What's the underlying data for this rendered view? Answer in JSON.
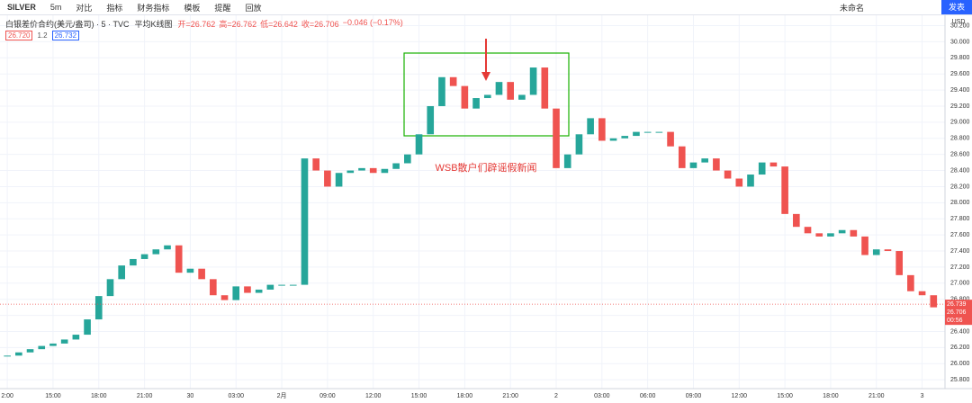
{
  "toolbar": {
    "symbol": "SILVER",
    "interval": "5m",
    "items": [
      "对比",
      "指标",
      "财务指标",
      "模板",
      "提醒",
      "回放"
    ],
    "layout_name": "未命名",
    "publish": "发表"
  },
  "legend": {
    "instrument": "白银差价合约(美元/盎司) · 5 · TVC",
    "chart_style": "平均K线图",
    "ohlc": [
      "开=26.762",
      "高=26.762",
      "低=26.642",
      "收=26.706",
      "−0.046 (−0.17%)"
    ],
    "bid": "26.720",
    "spread": "1.2",
    "ask": "26.732"
  },
  "chart_data": {
    "type": "candlestick",
    "currency": "USD",
    "annotation": "WSB散户们辟谣假新闻",
    "up_color": "#26a69a",
    "down_color": "#ef5350",
    "grid": true,
    "last_price": 26.739,
    "close_label": "26.706",
    "countdown": "00:56",
    "xlim": [
      -0.16,
      20.5
    ],
    "ylim": [
      25.69,
      30.34
    ],
    "xticks": [
      {
        "value": 0,
        "label": "2:00"
      },
      {
        "value": 1,
        "label": "15:00"
      },
      {
        "value": 2,
        "label": "18:00"
      },
      {
        "value": 3,
        "label": "21:00"
      },
      {
        "value": 4,
        "label": "30"
      },
      {
        "value": 5,
        "label": "03:00"
      },
      {
        "value": 6,
        "label": "2月"
      },
      {
        "value": 7,
        "label": "09:00"
      },
      {
        "value": 8,
        "label": "12:00"
      },
      {
        "value": 9,
        "label": "15:00"
      },
      {
        "value": 10,
        "label": "18:00"
      },
      {
        "value": 11,
        "label": "21:00"
      },
      {
        "value": 12,
        "label": "2"
      },
      {
        "value": 13,
        "label": "03:00"
      },
      {
        "value": 14,
        "label": "06:00"
      },
      {
        "value": 15,
        "label": "09:00"
      },
      {
        "value": 16,
        "label": "12:00"
      },
      {
        "value": 17,
        "label": "15:00"
      },
      {
        "value": 18,
        "label": "18:00"
      },
      {
        "value": 19,
        "label": "21:00"
      },
      {
        "value": 20,
        "label": "3"
      }
    ],
    "yticks": [
      {
        "value": 25.8,
        "label": "25.800"
      },
      {
        "value": 26.0,
        "label": "26.000"
      },
      {
        "value": 26.2,
        "label": "26.200"
      },
      {
        "value": 26.4,
        "label": "26.400"
      },
      {
        "value": 26.6,
        "label": "26.600"
      },
      {
        "value": 26.8,
        "label": "26.800"
      },
      {
        "value": 27.0,
        "label": "27.000"
      },
      {
        "value": 27.2,
        "label": "27.200"
      },
      {
        "value": 27.4,
        "label": "27.400"
      },
      {
        "value": 27.6,
        "label": "27.600"
      },
      {
        "value": 27.8,
        "label": "27.800"
      },
      {
        "value": 28.0,
        "label": "28.000"
      },
      {
        "value": 28.2,
        "label": "28.200"
      },
      {
        "value": 28.4,
        "label": "28.400"
      },
      {
        "value": 28.6,
        "label": "28.600"
      },
      {
        "value": 28.8,
        "label": "28.800"
      },
      {
        "value": 29.0,
        "label": "29.000"
      },
      {
        "value": 29.2,
        "label": "29.200"
      },
      {
        "value": 29.4,
        "label": "29.400"
      },
      {
        "value": 29.6,
        "label": "29.600"
      },
      {
        "value": 29.8,
        "label": "29.800"
      },
      {
        "value": 30.0,
        "label": "30.000"
      },
      {
        "value": 30.2,
        "label": "30.200"
      }
    ],
    "x": [
      0,
      0.25,
      0.5,
      0.75,
      1,
      1.25,
      1.5,
      1.75,
      2,
      2.25,
      2.5,
      2.75,
      3,
      3.25,
      3.5,
      3.75,
      4,
      4.25,
      4.5,
      4.75,
      5,
      5.25,
      5.5,
      5.75,
      6,
      6.25,
      6.5,
      6.75,
      7,
      7.25,
      7.5,
      7.75,
      8,
      8.25,
      8.5,
      8.75,
      9,
      9.25,
      9.5,
      9.75,
      10,
      10.25,
      10.5,
      10.75,
      11,
      11.25,
      11.5,
      11.75,
      12,
      12.25,
      12.5,
      12.75,
      13,
      13.25,
      13.5,
      13.75,
      14,
      14.25,
      14.5,
      14.75,
      15,
      15.25,
      15.5,
      15.75,
      16,
      16.25,
      16.5,
      16.75,
      17,
      17.25,
      17.5,
      17.75,
      18,
      18.25,
      18.5,
      18.75,
      19,
      19.25,
      19.5,
      19.75,
      20,
      20.25
    ],
    "values": [
      26.1,
      26.14,
      26.18,
      26.22,
      26.25,
      26.3,
      26.36,
      26.55,
      26.84,
      27.05,
      27.22,
      27.3,
      27.36,
      27.42,
      27.47,
      27.13,
      27.18,
      27.05,
      26.85,
      26.79,
      26.96,
      26.88,
      26.92,
      26.98,
      26.98,
      26.98,
      28.55,
      28.4,
      28.2,
      28.37,
      28.4,
      28.43,
      28.37,
      28.42,
      28.49,
      28.6,
      28.85,
      29.2,
      29.56,
      29.45,
      29.17,
      29.3,
      29.34,
      29.5,
      29.28,
      29.34,
      29.68,
      29.17,
      28.43,
      28.6,
      28.85,
      29.05,
      28.77,
      28.8,
      28.83,
      28.88,
      28.88,
      28.88,
      28.7,
      28.43,
      28.5,
      28.55,
      28.4,
      28.3,
      28.2,
      28.35,
      28.5,
      28.45,
      27.86,
      27.7,
      27.62,
      27.58,
      27.62,
      27.66,
      27.58,
      27.35,
      27.42,
      27.4,
      27.1,
      26.9,
      26.85,
      26.7
    ]
  }
}
